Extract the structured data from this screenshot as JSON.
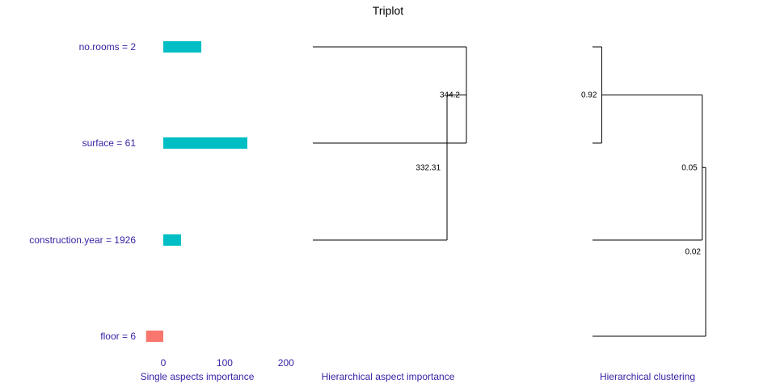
{
  "chart_data": {
    "type": "triplot",
    "title": "Triplot",
    "colors": {
      "positive": "#00BFC4",
      "negative": "#F8766D",
      "text": "#371EA3",
      "lines": "#000000"
    },
    "single_aspects": {
      "type": "bar",
      "orientation": "horizontal",
      "xlabel": "Single aspects importance",
      "categories": [
        "no.rooms = 2",
        "surface = 61",
        "construction.year = 1926",
        "floor = 6"
      ],
      "values": [
        62,
        137,
        29,
        -28
      ],
      "xticks": [
        0,
        100,
        200
      ],
      "xlim": [
        -30,
        137
      ]
    },
    "hierarchical_aspect_importance": {
      "type": "dendrogram",
      "xlabel": "Hierarchical aspect importance",
      "leaves": [
        "no.rooms = 2",
        "surface = 61",
        "construction.year = 1926"
      ],
      "merges": [
        {
          "left": "no.rooms = 2",
          "right": "surface = 61",
          "height": 344.2,
          "label": "344.2"
        },
        {
          "left": "no.rooms = 2 + surface = 61",
          "right": "construction.year = 1926",
          "height": 332.31,
          "label": "332.31"
        }
      ]
    },
    "hierarchical_clustering": {
      "type": "dendrogram",
      "xlabel": "Hierarchical clustering",
      "leaves": [
        "no.rooms = 2",
        "surface = 61",
        "construction.year = 1926",
        "floor = 6"
      ],
      "merges": [
        {
          "left": "no.rooms = 2",
          "right": "surface = 61",
          "height": 0.92,
          "label": "0.92"
        },
        {
          "left": "no.rooms = 2 + surface = 61",
          "right": "construction.year = 1926",
          "height": 0.05,
          "label": "0.05"
        },
        {
          "left": "no.rooms = 2 + surface = 61 + construction.year = 1926",
          "right": "floor = 6",
          "height": 0.02,
          "label": "0.02"
        }
      ]
    }
  }
}
